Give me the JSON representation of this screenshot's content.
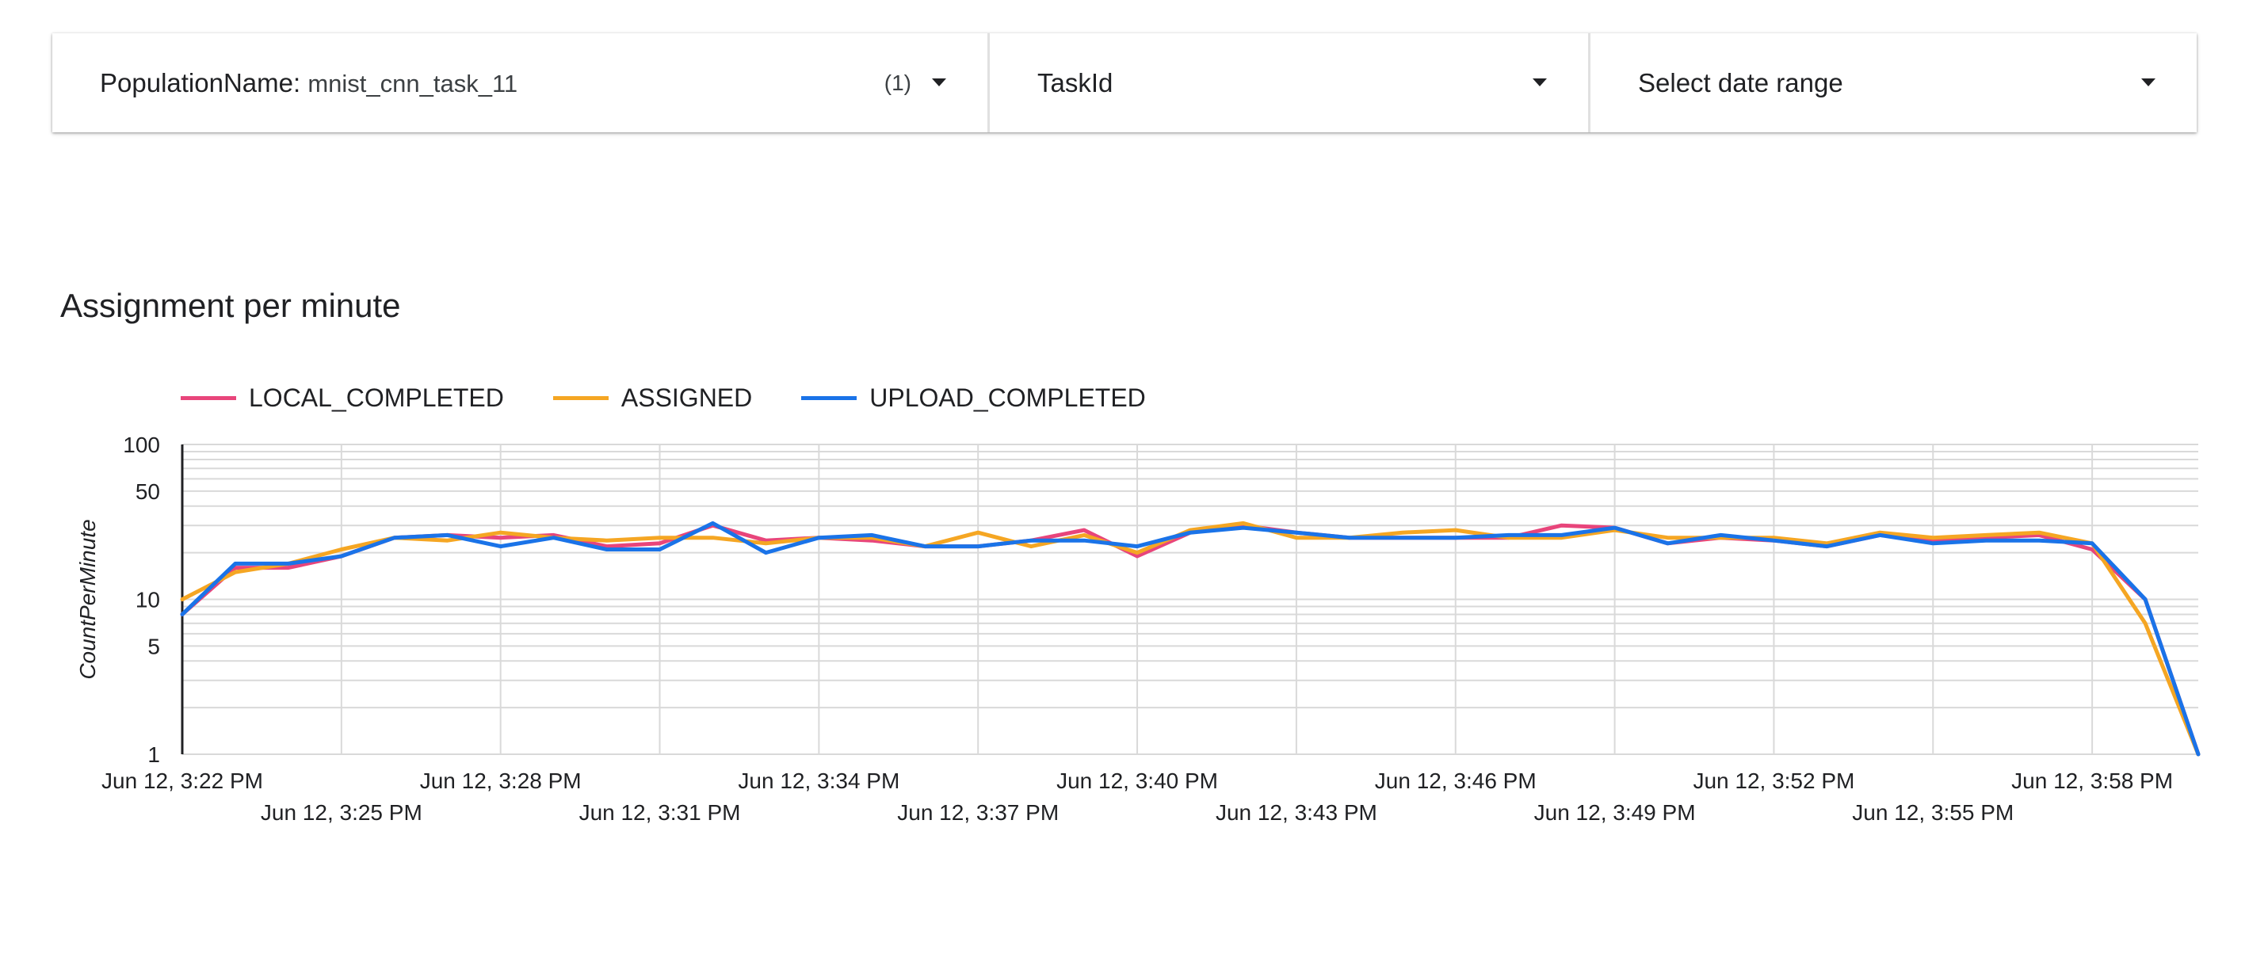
{
  "filters": [
    {
      "label": "PopulationName",
      "separator": ": ",
      "value": "mnist_cnn_task_11",
      "count": "(1)",
      "icon": "dropdown-caret-icon"
    },
    {
      "label": "TaskId",
      "icon": "dropdown-caret-icon"
    },
    {
      "label": "Select date range",
      "icon": "dropdown-caret-icon"
    }
  ],
  "chart_data": {
    "type": "line",
    "title": "Assignment per minute",
    "xlabel": "",
    "ylabel": "CountPerMinute",
    "yscale": "log",
    "ylim": [
      1,
      100
    ],
    "y_ticks": [
      1,
      5,
      10,
      50,
      100
    ],
    "legend_position": "top-left",
    "grid": true,
    "x_tick_labels": [
      "Jun 12, 3:22 PM",
      "Jun 12, 3:25 PM",
      "Jun 12, 3:28 PM",
      "Jun 12, 3:31 PM",
      "Jun 12, 3:34 PM",
      "Jun 12, 3:37 PM",
      "Jun 12, 3:40 PM",
      "Jun 12, 3:43 PM",
      "Jun 12, 3:46 PM",
      "Jun 12, 3:49 PM",
      "Jun 12, 3:52 PM",
      "Jun 12, 3:55 PM",
      "Jun 12, 3:58 PM"
    ],
    "x": [
      "3:22",
      "3:23",
      "3:24",
      "3:25",
      "3:26",
      "3:27",
      "3:28",
      "3:29",
      "3:30",
      "3:31",
      "3:32",
      "3:33",
      "3:34",
      "3:35",
      "3:36",
      "3:37",
      "3:38",
      "3:39",
      "3:40",
      "3:41",
      "3:42",
      "3:43",
      "3:44",
      "3:45",
      "3:46",
      "3:47",
      "3:48",
      "3:49",
      "3:50",
      "3:51",
      "3:52",
      "3:53",
      "3:54",
      "3:55",
      "3:56",
      "3:57",
      "3:58",
      "3:59",
      "4:00"
    ],
    "series": [
      {
        "name": "LOCAL_COMPLETED",
        "color": "#E8457B",
        "values": [
          8,
          16,
          16,
          19,
          25,
          26,
          25,
          26,
          22,
          23,
          30,
          24,
          25,
          24,
          22,
          22,
          24,
          28,
          19,
          27,
          30,
          27,
          25,
          25,
          25,
          25,
          30,
          29,
          23,
          25,
          24,
          22,
          26,
          24,
          25,
          26,
          21,
          10,
          1
        ]
      },
      {
        "name": "ASSIGNED",
        "color": "#F5A623",
        "values": [
          10,
          15,
          17,
          21,
          25,
          24,
          27,
          25,
          24,
          25,
          25,
          23,
          25,
          25,
          22,
          27,
          22,
          26,
          20,
          28,
          31,
          25,
          25,
          27,
          28,
          25,
          25,
          28,
          25,
          25,
          25,
          23,
          27,
          25,
          26,
          27,
          23,
          7,
          1
        ]
      },
      {
        "name": "UPLOAD_COMPLETED",
        "color": "#1A73E8",
        "values": [
          8,
          17,
          17,
          19,
          25,
          26,
          22,
          25,
          21,
          21,
          31,
          20,
          25,
          26,
          22,
          22,
          24,
          24,
          22,
          27,
          29,
          27,
          25,
          25,
          25,
          26,
          26,
          29,
          23,
          26,
          24,
          22,
          26,
          23,
          24,
          24,
          23,
          10,
          1
        ]
      }
    ]
  }
}
